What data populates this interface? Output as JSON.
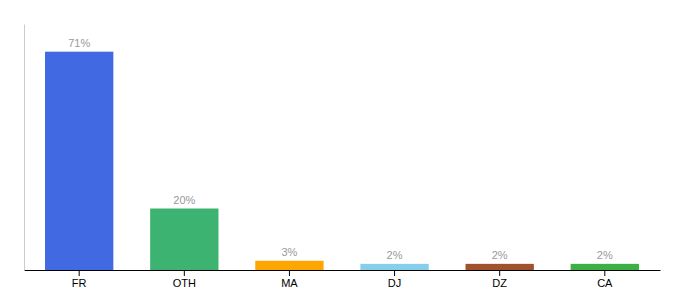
{
  "chart_data": {
    "type": "bar",
    "categories": [
      "FR",
      "OTH",
      "MA",
      "DJ",
      "DZ",
      "CA"
    ],
    "values": [
      71,
      20,
      3,
      2,
      2,
      2
    ],
    "value_labels": [
      "71%",
      "20%",
      "3%",
      "2%",
      "2%",
      "2%"
    ],
    "colors": [
      "#4169E1",
      "#3CB371",
      "#FFA500",
      "#87CEEB",
      "#A0522D",
      "#3CB043"
    ],
    "ylim": [
      0,
      80
    ],
    "data_labels": true,
    "tick_labels": "x",
    "grid": false
  }
}
